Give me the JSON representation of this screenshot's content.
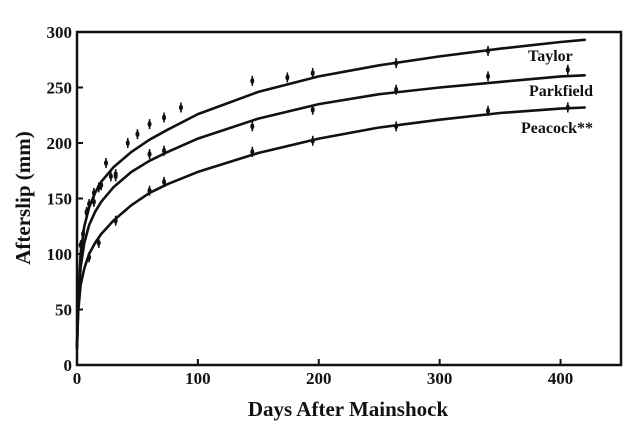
{
  "chart_data": {
    "type": "line",
    "title": "",
    "xlabel": "Days After Mainshock",
    "ylabel": "Afterslip (mm)",
    "xlim": [
      0,
      450
    ],
    "ylim": [
      0,
      300
    ],
    "xticks": [
      0,
      100,
      200,
      300,
      400
    ],
    "yticks": [
      0,
      50,
      100,
      150,
      200,
      250,
      300
    ],
    "grid": false,
    "legend": "none",
    "series": [
      {
        "name": "Taylor",
        "curve": {
          "x": [
            0,
            1,
            3,
            6,
            10,
            15,
            20,
            30,
            45,
            60,
            75,
            100,
            150,
            200,
            250,
            300,
            350,
            400,
            420
          ],
          "y": [
            15,
            60,
            100,
            125,
            142,
            155,
            165,
            178,
            192,
            203,
            212,
            226,
            246,
            260,
            270,
            278,
            285,
            291,
            293
          ]
        },
        "observations": {
          "x": [
            3,
            5,
            8,
            10,
            14,
            18,
            24,
            32,
            42,
            50,
            60,
            72,
            86,
            145,
            174,
            195,
            264,
            340,
            406
          ],
          "y": [
            108,
            118,
            137,
            145,
            155,
            160,
            182,
            170,
            200,
            208,
            217,
            223,
            232,
            256,
            259,
            263,
            272,
            283,
            266
          ]
        }
      },
      {
        "name": "Parkfield",
        "curve": {
          "x": [
            0,
            1,
            3,
            6,
            10,
            15,
            20,
            30,
            45,
            60,
            75,
            100,
            150,
            200,
            250,
            300,
            350,
            400,
            420
          ],
          "y": [
            15,
            55,
            88,
            110,
            126,
            138,
            147,
            160,
            174,
            184,
            192,
            204,
            222,
            235,
            244,
            250,
            255,
            260,
            261
          ]
        },
        "observations": {
          "x": [
            8,
            14,
            20,
            28,
            32,
            60,
            72,
            145,
            195,
            264,
            340
          ],
          "y": [
            138,
            147,
            162,
            170,
            172,
            190,
            193,
            215,
            230,
            248,
            260
          ]
        }
      },
      {
        "name": "Peacock**",
        "curve": {
          "x": [
            0,
            1,
            3,
            6,
            10,
            15,
            20,
            30,
            45,
            60,
            75,
            100,
            150,
            200,
            250,
            300,
            350,
            400,
            420
          ],
          "y": [
            15,
            48,
            72,
            87,
            100,
            110,
            118,
            130,
            144,
            155,
            163,
            174,
            191,
            204,
            214,
            221,
            227,
            231,
            232
          ]
        },
        "observations": {
          "x": [
            10,
            18,
            32,
            60,
            72,
            145,
            195,
            264,
            340,
            406
          ],
          "y": [
            97,
            110,
            130,
            157,
            165,
            192,
            202,
            215,
            229,
            232
          ]
        }
      }
    ],
    "labels": [
      "Taylor",
      "Parkfield",
      "Peacock**"
    ]
  }
}
